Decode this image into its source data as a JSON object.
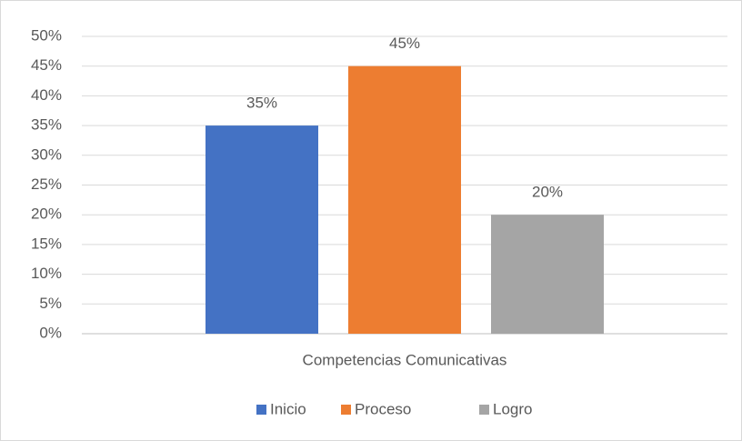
{
  "chart_data": {
    "type": "bar",
    "categories": [
      "Competencias Comunicativas"
    ],
    "series": [
      {
        "name": "Inicio",
        "color": "#4472c4",
        "values": [
          35
        ],
        "value_labels": [
          "35%"
        ]
      },
      {
        "name": "Proceso",
        "color": "#ed7d31",
        "values": [
          45
        ],
        "value_labels": [
          "45%"
        ]
      },
      {
        "name": "Logro",
        "color": "#a5a5a5",
        "values": [
          20
        ],
        "value_labels": [
          "20%"
        ]
      }
    ],
    "ylim": [
      0,
      50
    ],
    "yticks": [
      {
        "value": 0,
        "label": "0%"
      },
      {
        "value": 5,
        "label": "5%"
      },
      {
        "value": 10,
        "label": "10%"
      },
      {
        "value": 15,
        "label": "15%"
      },
      {
        "value": 20,
        "label": "20%"
      },
      {
        "value": 25,
        "label": "25%"
      },
      {
        "value": 30,
        "label": "30%"
      },
      {
        "value": 35,
        "label": "35%"
      },
      {
        "value": 40,
        "label": "40%"
      },
      {
        "value": 45,
        "label": "45%"
      },
      {
        "value": 50,
        "label": "50%"
      }
    ],
    "grid": true,
    "legend": "bottom"
  }
}
